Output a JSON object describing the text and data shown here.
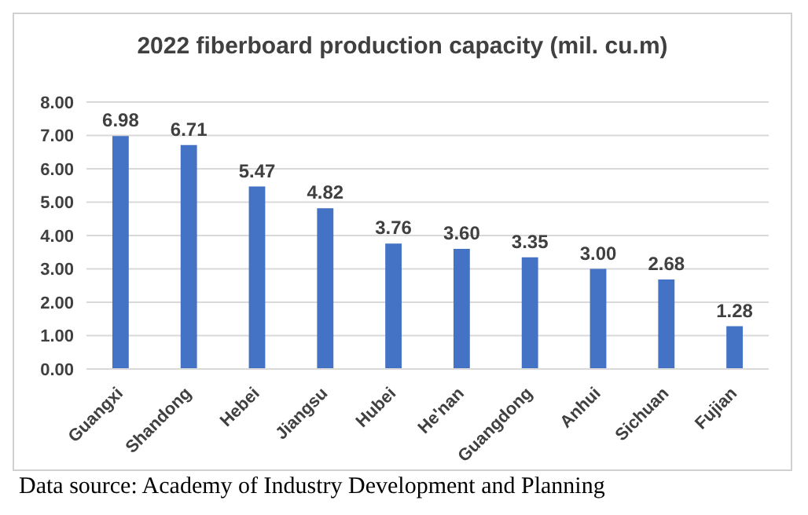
{
  "chart_data": {
    "type": "bar",
    "title": "2022 fiberboard production capacity (mil. cu.m)",
    "categories": [
      "Guangxi",
      "Shandong",
      "Hebei",
      "Jiangsu",
      "Hubei",
      "He'nan",
      "Guangdong",
      "Anhui",
      "Sichuan",
      "Fujian"
    ],
    "values": [
      6.98,
      6.71,
      5.47,
      4.82,
      3.76,
      3.6,
      3.35,
      3.0,
      2.68,
      1.28
    ],
    "value_labels": [
      "6.98",
      "6.71",
      "5.47",
      "4.82",
      "3.76",
      "3.60",
      "3.35",
      "3.00",
      "2.68",
      "1.28"
    ],
    "color": "#4472c4",
    "ylim": [
      0,
      8
    ],
    "yticks": [
      {
        "value": 0,
        "label": "0.00"
      },
      {
        "value": 1,
        "label": "1.00"
      },
      {
        "value": 2,
        "label": "2.00"
      },
      {
        "value": 3,
        "label": "3.00"
      },
      {
        "value": 4,
        "label": "4.00"
      },
      {
        "value": 5,
        "label": "5.00"
      },
      {
        "value": 6,
        "label": "6.00"
      },
      {
        "value": 7,
        "label": "7.00"
      },
      {
        "value": 8,
        "label": "8.00"
      }
    ],
    "grid": "y",
    "annotations": [
      "Data source: Academy of Industry Development and Planning"
    ]
  }
}
